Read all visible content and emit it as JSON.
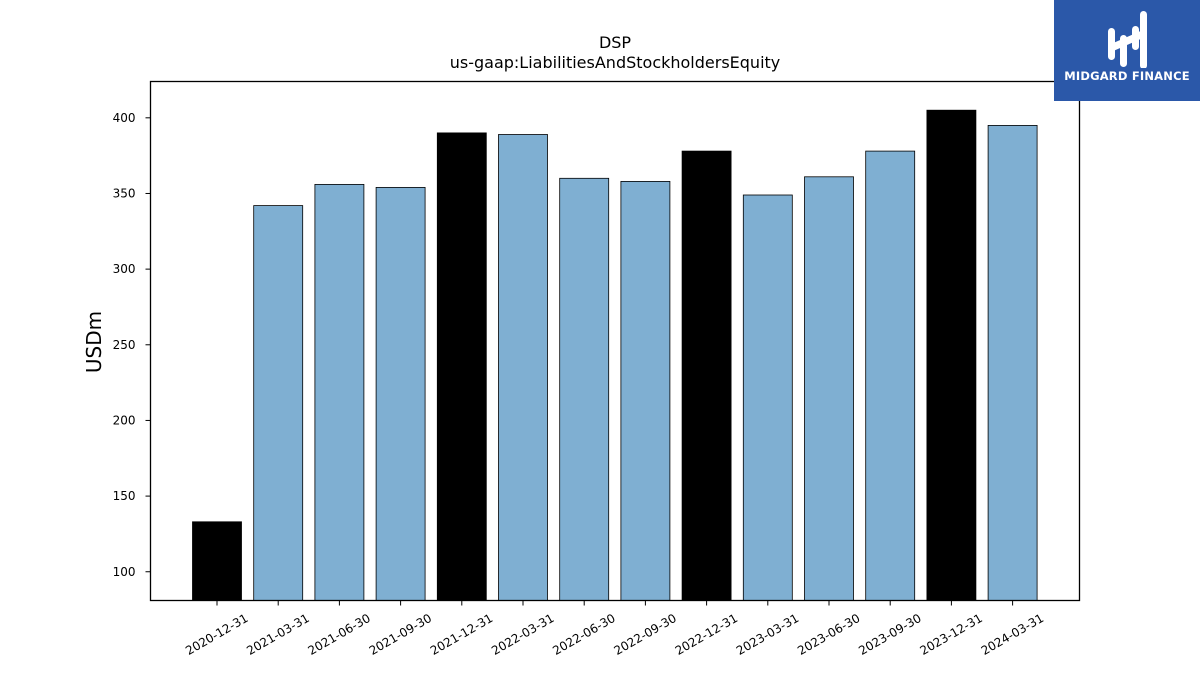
{
  "chart_data": {
    "type": "bar",
    "title": "DSP",
    "subtitle": "us-gaap:LiabilitiesAndStockholdersEquity",
    "xlabel": "",
    "ylabel": "USDm",
    "ylim": [
      81,
      424
    ],
    "yticks": [
      100,
      150,
      200,
      250,
      300,
      350,
      400
    ],
    "categories": [
      "2020-12-31",
      "2021-03-31",
      "2021-06-30",
      "2021-09-30",
      "2021-12-31",
      "2022-03-31",
      "2022-06-30",
      "2022-09-30",
      "2022-12-31",
      "2023-03-31",
      "2023-06-30",
      "2023-09-30",
      "2023-12-31",
      "2024-03-31"
    ],
    "values": [
      133,
      342,
      356,
      354,
      390,
      389,
      360,
      358,
      378,
      349,
      361,
      378,
      405,
      395
    ],
    "highlight": [
      true,
      false,
      false,
      false,
      true,
      false,
      false,
      false,
      true,
      false,
      false,
      false,
      true,
      false
    ],
    "colors": {
      "bar": "#7fafd2",
      "highlight": "#000000",
      "edge": "#000000"
    },
    "grid": false,
    "legend": "none"
  },
  "logo": {
    "text": "MIDGARD FINANCE",
    "background": "#2b58a9"
  }
}
